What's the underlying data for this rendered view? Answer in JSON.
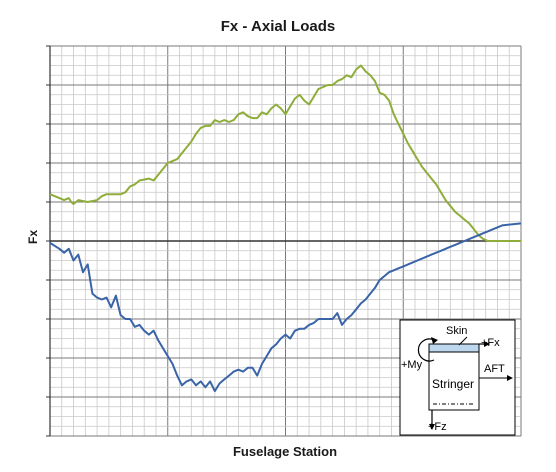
{
  "chart_data": {
    "type": "line",
    "title": "Fx - Axial Loads",
    "xlabel": "Fuselage Station",
    "ylabel": "Fx",
    "grid": true,
    "xlim": [
      0,
      100
    ],
    "ylim": [
      -10,
      10
    ],
    "series": [
      {
        "color": "#8fad3a",
        "x": [
          0,
          2,
          3,
          4,
          4.5,
          5,
          6,
          8,
          10,
          11,
          12,
          13,
          15,
          16,
          17,
          18,
          19,
          21,
          22,
          23,
          24,
          25,
          26,
          27,
          28,
          29,
          30,
          31,
          32,
          33,
          34,
          35,
          36,
          37,
          38,
          39,
          40,
          41,
          42,
          43,
          44,
          45,
          46,
          47,
          48,
          49,
          50,
          51,
          52,
          53,
          54,
          55,
          56,
          57,
          58,
          59,
          60,
          61,
          62,
          63,
          64,
          65,
          66,
          67,
          68,
          69,
          70,
          71,
          72,
          73,
          74,
          75,
          76,
          77,
          78,
          79,
          80,
          81,
          82,
          83,
          84,
          85,
          86,
          87,
          88,
          89,
          90,
          91,
          92,
          93,
          94,
          95,
          96,
          97,
          98,
          99,
          100
        ],
        "y": [
          2.4,
          2.2,
          2.1,
          2.2,
          2.0,
          1.9,
          2.1,
          2.0,
          2.1,
          2.3,
          2.4,
          2.4,
          2.4,
          2.5,
          2.8,
          2.9,
          3.1,
          3.2,
          3.1,
          3.4,
          3.7,
          4.0,
          4.1,
          4.2,
          4.5,
          4.8,
          5.1,
          5.5,
          5.8,
          5.9,
          5.9,
          6.2,
          6.1,
          6.2,
          6.1,
          6.2,
          6.5,
          6.6,
          6.4,
          6.3,
          6.3,
          6.6,
          6.5,
          6.8,
          7.0,
          6.8,
          6.5,
          6.9,
          7.3,
          7.5,
          7.2,
          7.0,
          7.4,
          7.8,
          7.9,
          8.0,
          8.0,
          8.2,
          8.3,
          8.5,
          8.4,
          8.8,
          9.0,
          8.7,
          8.5,
          8.2,
          7.6,
          7.5,
          7.2,
          6.5,
          6.0,
          5.5,
          5.0,
          4.6,
          4.2,
          3.8,
          3.5,
          3.2,
          2.9,
          2.5,
          2.1,
          1.8,
          1.5,
          1.3,
          1.1,
          0.9,
          0.6,
          0.3,
          0.1,
          0.0,
          0.0,
          0.0,
          0.0,
          0.0,
          0.0,
          0.0,
          0.0
        ]
      },
      {
        "color": "#3a64a8",
        "x": [
          0,
          2,
          3,
          4,
          5,
          6,
          7,
          8,
          9,
          10,
          11,
          12,
          13,
          14,
          15,
          16,
          17,
          18,
          19,
          20,
          21,
          22,
          23,
          24,
          25,
          26,
          27,
          28,
          29,
          30,
          31,
          32,
          33,
          34,
          35,
          36,
          37,
          38,
          39,
          40,
          41,
          42,
          43,
          44,
          45,
          46,
          47,
          48,
          49,
          50,
          51,
          52,
          53,
          54,
          55,
          56,
          57,
          58,
          59,
          60,
          61,
          62,
          63,
          64,
          65,
          66,
          67,
          68,
          69,
          70,
          71,
          72,
          73,
          74,
          75,
          76,
          77,
          78,
          79,
          80,
          81,
          82,
          83,
          84,
          85,
          86,
          87,
          88,
          89,
          90,
          91,
          92,
          93,
          94,
          95,
          96,
          100
        ],
        "y": [
          -0.1,
          -0.4,
          -0.6,
          -0.4,
          -1.0,
          -0.7,
          -1.6,
          -1.2,
          -2.7,
          -2.9,
          -3.0,
          -2.9,
          -3.4,
          -2.8,
          -3.8,
          -4.0,
          -4.0,
          -4.4,
          -4.3,
          -4.6,
          -4.8,
          -4.6,
          -5.1,
          -5.5,
          -5.9,
          -6.3,
          -6.9,
          -7.4,
          -7.2,
          -7.1,
          -7.4,
          -7.2,
          -7.5,
          -7.2,
          -7.7,
          -7.3,
          -7.1,
          -6.9,
          -6.7,
          -6.6,
          -6.7,
          -6.5,
          -6.5,
          -6.9,
          -6.3,
          -5.9,
          -5.5,
          -5.3,
          -5.0,
          -4.8,
          -5.0,
          -4.6,
          -4.5,
          -4.5,
          -4.3,
          -4.2,
          -4.0,
          -4.0,
          -4.0,
          -4.0,
          -3.7,
          -4.3,
          -4.0,
          -3.8,
          -3.5,
          -3.2,
          -3.0,
          -2.7,
          -2.4,
          -2.0,
          -1.8,
          -1.6,
          -1.5,
          -1.4,
          -1.3,
          -1.2,
          -1.1,
          -1.0,
          -0.9,
          -0.8,
          -0.7,
          -0.6,
          -0.5,
          -0.4,
          -0.3,
          -0.2,
          -0.1,
          0.0,
          0.1,
          0.2,
          0.3,
          0.4,
          0.5,
          0.6,
          0.7,
          0.8,
          0.9
        ]
      }
    ]
  },
  "inset": {
    "skin": "Skin",
    "fx": "+Fx",
    "my": "+My",
    "aft": "AFT",
    "stringer": "Stringer",
    "fz": "+Fz"
  },
  "colors": {
    "grid_minor": "#c8c8c8",
    "grid_major": "#7a7a7a",
    "series_green": "#8fad3a",
    "series_blue": "#3a64a8",
    "skin_fill": "#bcd7ee"
  }
}
